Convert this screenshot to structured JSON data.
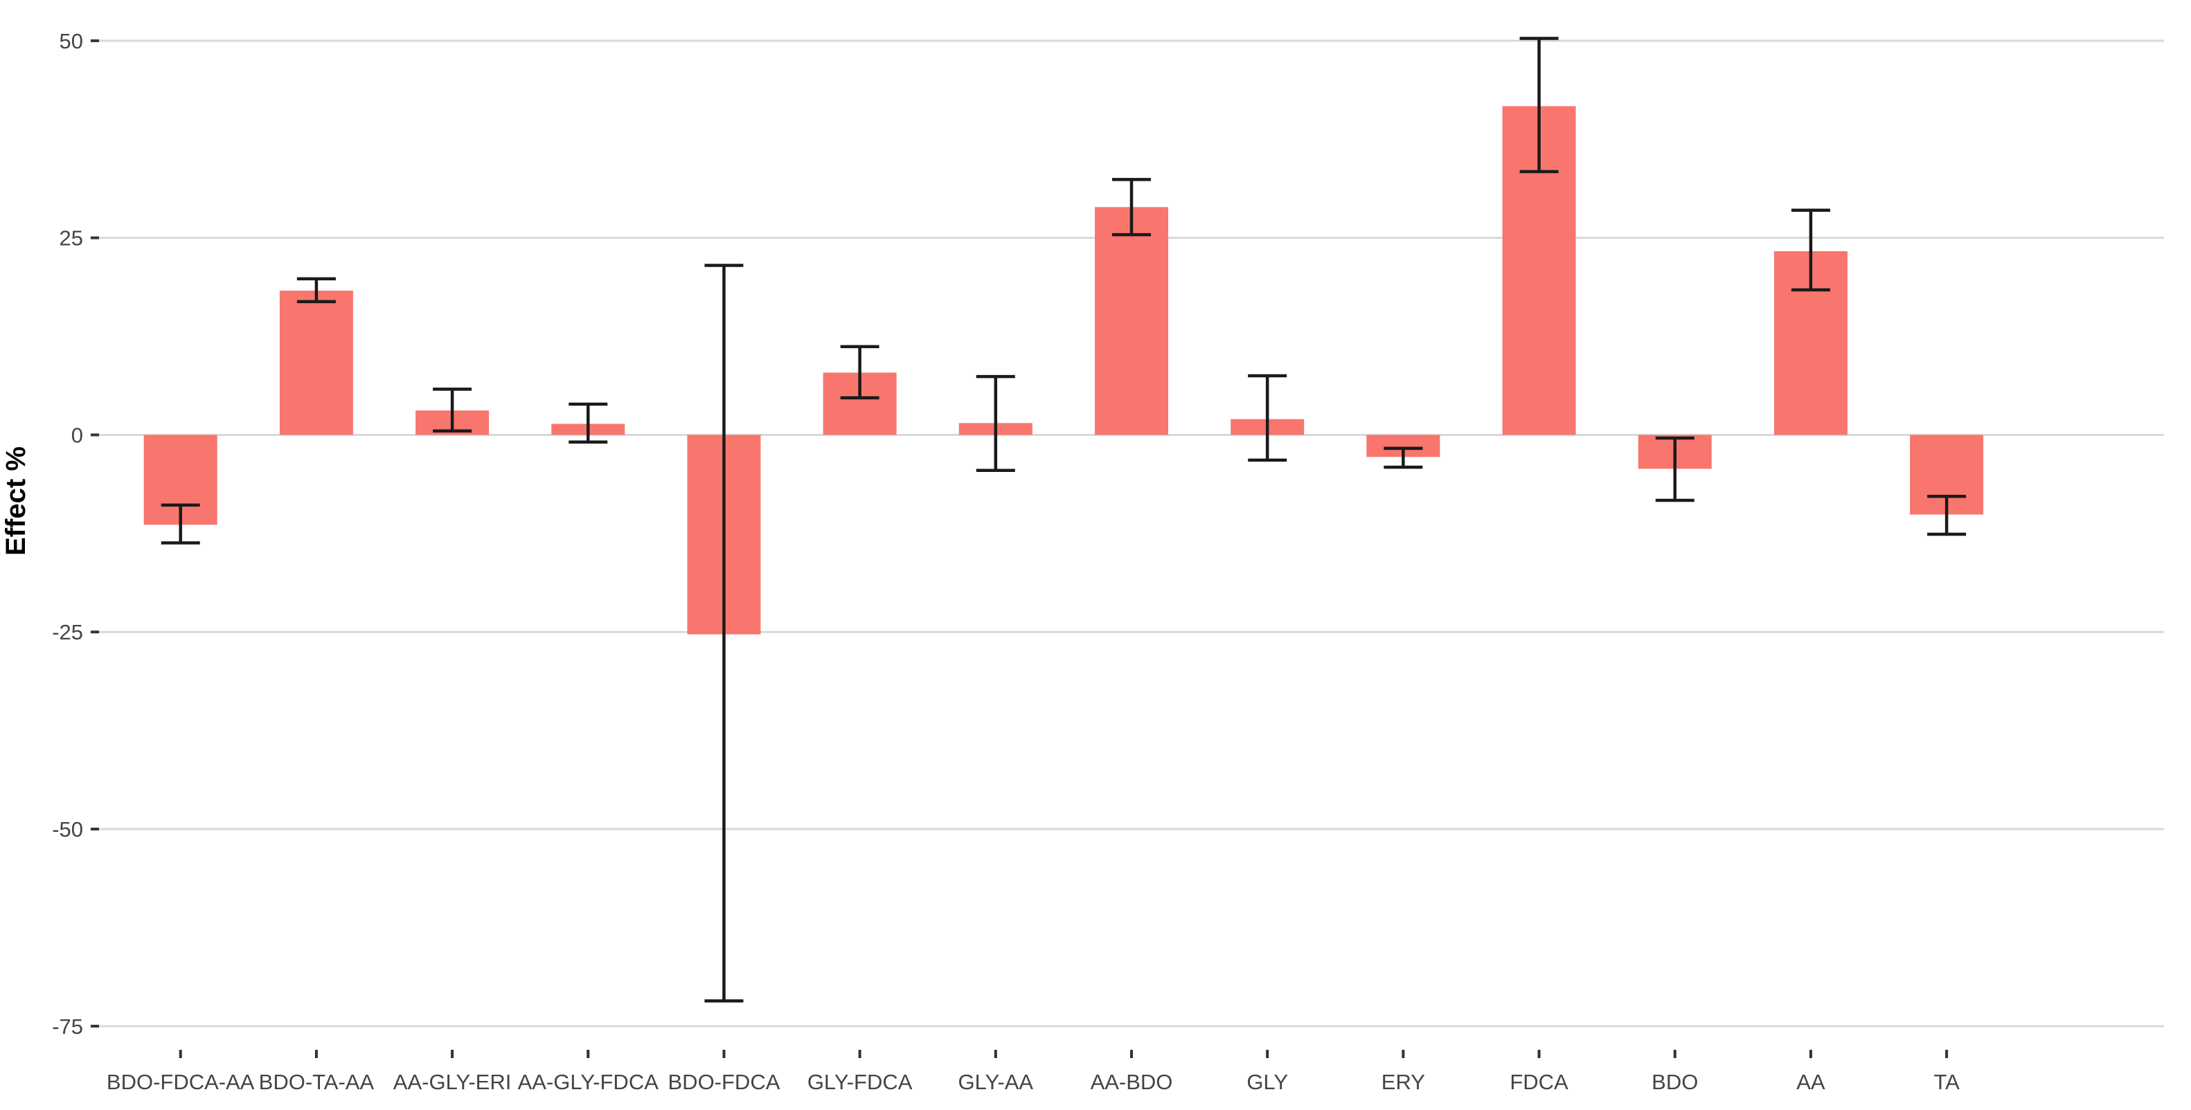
{
  "chart_data": {
    "type": "bar",
    "title": "",
    "ylabel": "Effect %",
    "xlabel": "",
    "categories": [
      "BDO-FDCA-AA",
      "BDO-TA-AA",
      "AA-GLY-ERI",
      "AA-GLY-FDCA",
      "BDO-FDCA",
      "GLY-FDCA",
      "GLY-AA",
      "AA-BDO",
      "GLY",
      "ERY",
      "FDCA",
      "BDO",
      "AA",
      "TA"
    ],
    "series": [
      {
        "name": "Effect %",
        "values": [
          -11.4,
          18.3,
          3.1,
          1.4,
          -25.3,
          7.9,
          1.5,
          28.9,
          2.0,
          -2.8,
          41.7,
          -4.3,
          23.3,
          -10.1
        ],
        "error_low": [
          -13.7,
          16.9,
          0.5,
          -0.9,
          -71.8,
          4.7,
          -4.5,
          25.4,
          -3.2,
          -4.1,
          33.4,
          -8.3,
          18.4,
          -12.6
        ],
        "error_high": [
          -8.9,
          19.8,
          5.8,
          3.9,
          21.5,
          11.2,
          7.4,
          32.4,
          7.5,
          -1.7,
          50.3,
          -0.4,
          28.5,
          -7.8
        ]
      }
    ],
    "yticks": [
      50,
      25,
      0,
      -25,
      -50,
      -75
    ],
    "ytick_labels": [
      "50",
      "25",
      "0",
      "-25",
      "-50",
      "-75"
    ],
    "ylim": [
      -78,
      53.5
    ],
    "grid": "horizontal-major-only",
    "legend": "none",
    "colors": {
      "bar_fill": "#F8766D",
      "error_bar": "#1A1A1A",
      "gridline": "#D9D9D9",
      "tick_mark": "#333333",
      "axis_text": "#444444",
      "axis_title": "#000000",
      "background": "#FFFFFF"
    }
  }
}
